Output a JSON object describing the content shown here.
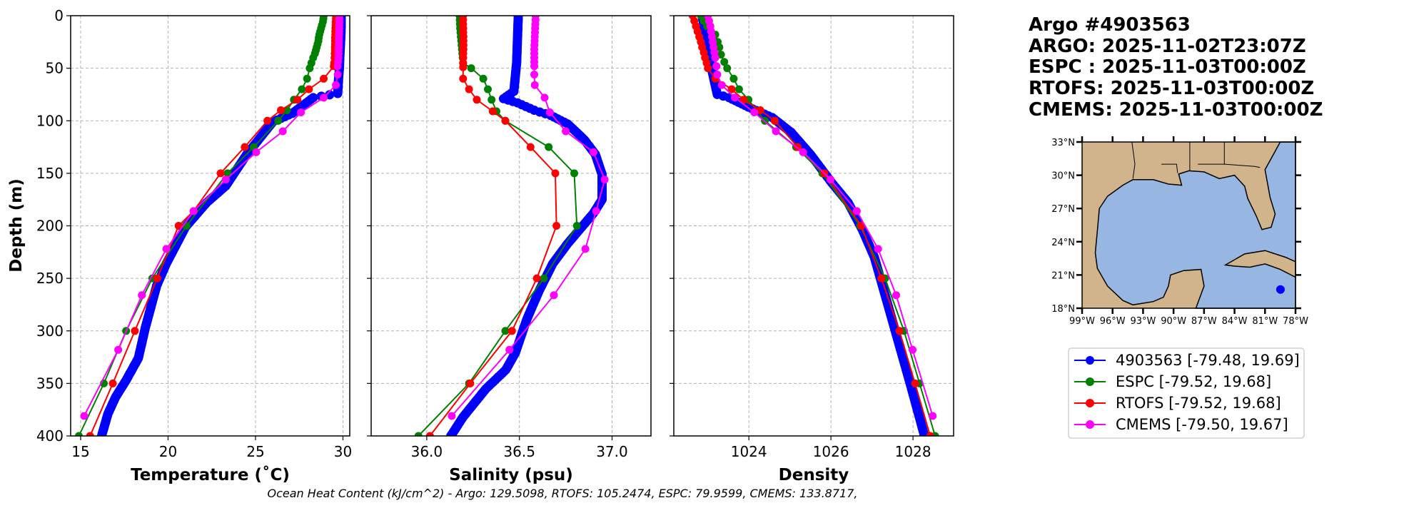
{
  "title_lines": [
    "Argo #4903563",
    "ARGO: 2025-11-02T23:07Z",
    "ESPC : 2025-11-03T00:00Z",
    "RTOFS: 2025-11-03T00:00Z",
    "CMEMS: 2025-11-03T00:00Z"
  ],
  "footer": "Ocean Heat Content (kJ/cm^2) - Argo: 129.5098,  RTOFS: 105.2474,  ESPC: 79.9599,  CMEMS: 133.8717,",
  "colors": {
    "argo": "#0000ff",
    "espc": "#008000",
    "rtofs": "#ff0000",
    "cmems": "#ff00ff",
    "land": "#d2b48c",
    "water": "#97b6e1"
  },
  "legend": [
    {
      "key": "argo",
      "label": "4903563 [-79.48, 19.69]"
    },
    {
      "key": "espc",
      "label": "ESPC [-79.52, 19.68]"
    },
    {
      "key": "rtofs",
      "label": "RTOFS [-79.52, 19.68]"
    },
    {
      "key": "cmems",
      "label": "CMEMS [-79.50, 19.67]"
    }
  ],
  "map": {
    "lat_ticks": [
      "33°N",
      "30°N",
      "27°N",
      "24°N",
      "21°N",
      "18°N"
    ],
    "lon_ticks": [
      "99°W",
      "96°W",
      "93°W",
      "90°W",
      "87°W",
      "84°W",
      "81°W",
      "78°W"
    ],
    "lon_range": [
      -99,
      -78
    ],
    "lat_range": [
      18,
      33
    ],
    "float_position": {
      "lon": -79.48,
      "lat": 19.69
    }
  },
  "chart_data": [
    {
      "type": "line",
      "xlabel": "Temperature (˚C)",
      "ylabel": "Depth (m)",
      "xlim": [
        14.43,
        30.39
      ],
      "ylim": [
        400,
        0
      ],
      "xticks": [
        15,
        20,
        25,
        30
      ],
      "xtick_labels": [
        "15",
        "20",
        "25",
        "30"
      ],
      "yticks": [
        0,
        50,
        100,
        150,
        200,
        250,
        300,
        350,
        400
      ],
      "ytick_labels": [
        "0",
        "50",
        "100",
        "150",
        "200",
        "250",
        "300",
        "350",
        "400"
      ],
      "grid": true,
      "series": [
        {
          "key": "argo",
          "dense": true,
          "depth": [
            0,
            10,
            20,
            30,
            40,
            50,
            60,
            74,
            78,
            93,
            101,
            132,
            162,
            178,
            201,
            236,
            257,
            297,
            326,
            347,
            363,
            379,
            400
          ],
          "values": [
            29.9,
            29.9,
            29.88,
            29.85,
            29.82,
            29.8,
            29.75,
            29.7,
            28.3,
            27.1,
            26.0,
            24.5,
            23.3,
            22.2,
            21.0,
            19.9,
            19.35,
            18.7,
            18.3,
            17.6,
            17.0,
            16.56,
            16.2
          ]
        },
        {
          "key": "espc",
          "depth": [
            0,
            3,
            6,
            9,
            12,
            15,
            18,
            21,
            24,
            27,
            30,
            33,
            36,
            40,
            45,
            50,
            60,
            70,
            80,
            90,
            100,
            125,
            150,
            200,
            250,
            300,
            350,
            400
          ],
          "values": [
            28.9,
            28.88,
            28.85,
            28.8,
            28.75,
            28.7,
            28.65,
            28.62,
            28.6,
            28.55,
            28.5,
            28.45,
            28.4,
            28.3,
            28.2,
            28.1,
            27.95,
            27.65,
            27.2,
            26.8,
            26.3,
            24.9,
            23.4,
            21.05,
            19.1,
            17.6,
            16.33,
            14.9
          ]
        },
        {
          "key": "rtofs",
          "depth": [
            0,
            3,
            6,
            9,
            12,
            15,
            18,
            21,
            24,
            27,
            30,
            33,
            36,
            40,
            45,
            48,
            60,
            70,
            80,
            90,
            100,
            125,
            150,
            186,
            200,
            250,
            300,
            350,
            400
          ],
          "values": [
            29.6,
            29.6,
            29.58,
            29.58,
            29.57,
            29.56,
            29.56,
            29.55,
            29.55,
            29.55,
            29.54,
            29.54,
            29.53,
            29.52,
            29.5,
            29.48,
            28.9,
            28.06,
            27.4,
            26.45,
            25.68,
            24.38,
            23.0,
            21.46,
            20.6,
            19.38,
            18.1,
            16.84,
            15.54
          ]
        },
        {
          "key": "cmems",
          "depth": [
            0,
            3,
            6,
            9,
            12,
            15,
            18,
            21,
            24,
            27,
            30,
            33,
            36,
            40,
            44,
            48,
            56,
            66,
            78,
            92,
            110,
            130,
            156,
            186,
            222,
            266,
            318,
            381
          ],
          "values": [
            29.8,
            29.8,
            29.8,
            29.79,
            29.79,
            29.78,
            29.78,
            29.77,
            29.77,
            29.76,
            29.76,
            29.75,
            29.75,
            29.74,
            29.72,
            29.7,
            29.7,
            29.6,
            28.9,
            27.6,
            26.56,
            25.04,
            23.3,
            21.46,
            19.9,
            18.5,
            17.15,
            15.2
          ]
        }
      ]
    },
    {
      "type": "line",
      "xlabel": "Salinity (psu)",
      "xlim": [
        35.7,
        37.21
      ],
      "ylim": [
        400,
        0
      ],
      "xticks": [
        36.0,
        36.5,
        37.0
      ],
      "xtick_labels": [
        "36.0",
        "36.5",
        "37.0"
      ],
      "yticks": [
        0,
        50,
        100,
        150,
        200,
        250,
        300,
        350,
        400
      ],
      "grid": true,
      "series": [
        {
          "key": "argo",
          "dense": true,
          "depth": [
            0,
            20,
            45,
            72,
            79,
            83,
            90,
            95,
            103,
            118,
            132,
            151,
            175,
            188,
            201,
            217,
            236,
            262,
            289,
            321,
            337,
            355,
            368,
            382,
            400
          ],
          "values": [
            36.494,
            36.49,
            36.485,
            36.47,
            36.414,
            36.49,
            36.58,
            36.67,
            36.76,
            36.85,
            36.91,
            36.946,
            36.946,
            36.9,
            36.837,
            36.76,
            36.68,
            36.606,
            36.54,
            36.478,
            36.427,
            36.32,
            36.26,
            36.196,
            36.13
          ]
        },
        {
          "key": "espc",
          "depth": [
            0,
            4,
            8,
            12,
            16,
            20,
            24,
            28,
            32,
            36,
            40,
            45,
            50,
            60,
            70,
            80,
            91,
            100,
            125,
            150,
            200,
            250,
            300,
            350,
            400
          ],
          "values": [
            36.177,
            36.178,
            36.179,
            36.18,
            36.182,
            36.184,
            36.186,
            36.188,
            36.19,
            36.192,
            36.194,
            36.196,
            36.24,
            36.305,
            36.33,
            36.35,
            36.376,
            36.424,
            36.658,
            36.796,
            36.81,
            36.632,
            36.424,
            36.228,
            35.955
          ]
        },
        {
          "key": "rtofs",
          "depth": [
            0,
            4,
            8,
            12,
            16,
            20,
            24,
            28,
            32,
            36,
            40,
            45,
            49,
            60,
            70,
            80,
            91,
            100,
            125,
            150,
            200,
            250,
            300,
            350,
            400
          ],
          "values": [
            36.196,
            36.196,
            36.196,
            36.197,
            36.197,
            36.198,
            36.198,
            36.198,
            36.198,
            36.197,
            36.197,
            36.196,
            36.196,
            36.196,
            36.228,
            36.27,
            36.356,
            36.424,
            36.56,
            36.694,
            36.7,
            36.594,
            36.46,
            36.235,
            36.017
          ]
        },
        {
          "key": "cmems",
          "depth": [
            0,
            4,
            8,
            12,
            16,
            20,
            24,
            28,
            32,
            36,
            40,
            44,
            48,
            56,
            66,
            78,
            92,
            110,
            130,
            156,
            186,
            222,
            266,
            318,
            381
          ],
          "values": [
            36.587,
            36.587,
            36.586,
            36.585,
            36.584,
            36.583,
            36.582,
            36.581,
            36.58,
            36.58,
            36.58,
            36.58,
            36.58,
            36.58,
            36.583,
            36.636,
            36.664,
            36.75,
            36.9,
            36.96,
            36.914,
            36.856,
            36.686,
            36.446,
            36.135
          ]
        }
      ]
    },
    {
      "type": "line",
      "xlabel": "Density",
      "xlim": [
        1022.17,
        1028.99
      ],
      "ylim": [
        400,
        0
      ],
      "xticks": [
        1024,
        1026,
        1028
      ],
      "xtick_labels": [
        "1024",
        "1026",
        "1028"
      ],
      "yticks": [
        0,
        50,
        100,
        150,
        200,
        250,
        300,
        350,
        400
      ],
      "grid": true,
      "series": [
        {
          "key": "argo",
          "dense": true,
          "depth": [
            0,
            45,
            75,
            78,
            87,
            97,
            111,
            132,
            159,
            178,
            204,
            230,
            270,
            310,
            350,
            400
          ],
          "values": [
            1022.86,
            1023.06,
            1023.23,
            1023.52,
            1023.99,
            1024.57,
            1025.03,
            1025.5,
            1026.02,
            1026.42,
            1026.77,
            1027.06,
            1027.35,
            1027.64,
            1027.93,
            1028.28
          ]
        },
        {
          "key": "espc",
          "depth": [
            0,
            5,
            10,
            18,
            25,
            30,
            37,
            44,
            50,
            60,
            70,
            80,
            100,
            125,
            150,
            200,
            250,
            300,
            350,
            400
          ],
          "values": [
            1022.83,
            1022.9,
            1022.98,
            1023.18,
            1023.24,
            1023.28,
            1023.32,
            1023.4,
            1023.47,
            1023.63,
            1023.76,
            1023.99,
            1024.39,
            1025.15,
            1025.79,
            1026.71,
            1027.32,
            1027.78,
            1028.16,
            1028.54
          ]
        },
        {
          "key": "rtofs",
          "depth": [
            0,
            5,
            10,
            15,
            20,
            25,
            30,
            35,
            40,
            45,
            50,
            60,
            70,
            80,
            90,
            100,
            125,
            150,
            200,
            250,
            300,
            350,
            400
          ],
          "values": [
            1022.63,
            1022.67,
            1022.71,
            1022.75,
            1022.79,
            1022.83,
            1022.86,
            1022.9,
            1022.93,
            1022.97,
            1023.0,
            1023.18,
            1023.58,
            1023.87,
            1024.28,
            1024.63,
            1025.19,
            1025.84,
            1026.74,
            1027.23,
            1027.67,
            1028.05,
            1028.42
          ]
        },
        {
          "key": "cmems",
          "depth": [
            0,
            5,
            10,
            15,
            20,
            25,
            30,
            35,
            40,
            48,
            56,
            66,
            78,
            92,
            110,
            130,
            156,
            186,
            222,
            266,
            318,
            381
          ],
          "values": [
            1023.0,
            1023.03,
            1023.06,
            1023.08,
            1023.1,
            1023.12,
            1023.14,
            1023.16,
            1023.18,
            1023.21,
            1023.23,
            1023.34,
            1023.66,
            1024.13,
            1024.66,
            1025.32,
            1025.99,
            1026.63,
            1027.15,
            1027.59,
            1027.99,
            1028.48
          ]
        }
      ]
    }
  ]
}
